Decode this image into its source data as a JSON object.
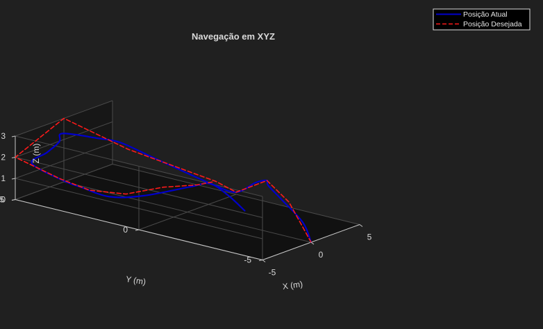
{
  "colors": {
    "background": "#202020",
    "actual": "#0000cc",
    "desired": "#ff1a1a"
  },
  "chart_data": {
    "type": "line",
    "projection": "3d",
    "title": "Navegação em XYZ",
    "xlabel": "X (m)",
    "ylabel": "Y (m)",
    "zlabel": "Z (m)",
    "xlim": [
      -5,
      5
    ],
    "ylim": [
      -5,
      5
    ],
    "zlim": [
      0,
      3
    ],
    "xticks": [
      "-5",
      "0",
      "5"
    ],
    "yticks": [
      "-5",
      "0",
      "5"
    ],
    "zticks": [
      "0",
      "1",
      "2",
      "3"
    ],
    "grid": true,
    "legend_position": "top-right",
    "series": [
      {
        "name": "Posição Atual",
        "style": "solid",
        "color": "#0000cc",
        "points": [
          [
            0,
            -5,
            0
          ],
          [
            1.2,
            -4.2,
            0.5
          ],
          [
            2.5,
            -2.8,
            1.0
          ],
          [
            3.2,
            -2.0,
            1.3
          ],
          [
            3.6,
            -1.8,
            1.4
          ],
          [
            4.2,
            -1.1,
            1.0
          ],
          [
            5,
            0,
            0.1
          ],
          [
            4.3,
            0.7,
            0.4
          ],
          [
            3.0,
            1.6,
            1.1
          ],
          [
            1.8,
            2.2,
            1.7
          ],
          [
            0.4,
            2.9,
            2.4
          ],
          [
            -0.2,
            3.6,
            2.5
          ],
          [
            -0.9,
            4.3,
            2.6
          ],
          [
            -1.4,
            4.6,
            2.6
          ],
          [
            -2.0,
            4.4,
            2.4
          ],
          [
            -3.3,
            4.4,
            2.1
          ],
          [
            -4.3,
            4.6,
            1.7
          ],
          [
            -4.5,
            3.2,
            1.3
          ],
          [
            -4.5,
            2.5,
            1.2
          ],
          [
            -4.2,
            1.5,
            1.0
          ],
          [
            -3.0,
            0.6,
            1.1
          ],
          [
            -1.0,
            -0.5,
            1.5
          ],
          [
            0.0,
            -0.9,
            1.6
          ],
          [
            0.6,
            -1.4,
            1.1
          ],
          [
            0.8,
            -2.0,
            0.5
          ]
        ]
      },
      {
        "name": "Posição Desejada",
        "style": "dashed",
        "color": "#ff1a1a",
        "points": [
          [
            0,
            -5,
            0
          ],
          [
            2.3,
            -3.2,
            1.0
          ],
          [
            3.6,
            -1.8,
            1.4
          ],
          [
            5,
            0,
            0.1
          ],
          [
            4.2,
            0.5,
            0.6
          ],
          [
            1.0,
            2.8,
            2.0
          ],
          [
            0,
            5,
            3
          ],
          [
            -5,
            5,
            2
          ],
          [
            -5,
            3.2,
            1.5
          ],
          [
            -5,
            2.0,
            1.3
          ],
          [
            -3.8,
            1.0,
            1.2
          ],
          [
            -2.0,
            0.2,
            1.45
          ],
          [
            -0.6,
            -0.6,
            1.55
          ],
          [
            0,
            -1,
            1.7
          ]
        ]
      }
    ]
  }
}
